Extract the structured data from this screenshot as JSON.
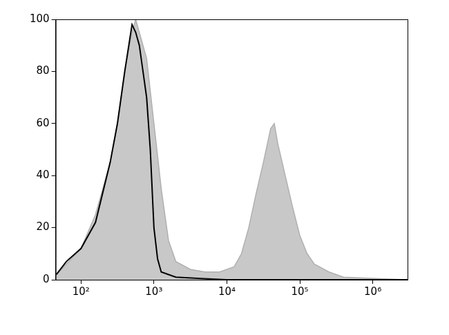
{
  "chart_data": {
    "type": "line",
    "log": "x",
    "grid": false,
    "xlim": [
      45,
      3000000
    ],
    "xticks": [
      {
        "value": 100,
        "label": "10²"
      },
      {
        "value": 1000,
        "label": "10³"
      },
      {
        "value": 10000,
        "label": "10⁴"
      },
      {
        "value": 100000,
        "label": "10⁵"
      },
      {
        "value": 1000000,
        "label": "10⁶"
      }
    ],
    "ylim": [
      0,
      100
    ],
    "yticks": [
      0,
      20,
      40,
      60,
      80,
      100
    ],
    "series": [
      {
        "color": "#c8c8c8",
        "type": "area",
        "x": [
          46,
          63,
          100,
          158,
          251,
          316,
          398,
          501,
          562,
          631,
          794,
          1000,
          1259,
          1585,
          1995,
          3162,
          5012,
          7943,
          12589,
          15849,
          19953,
          25119,
          31623,
          39811,
          44668,
          50119,
          63096,
          79433,
          100000,
          125893,
          158489,
          251189,
          398107,
          1000000,
          3000000
        ],
        "values": [
          2,
          6,
          12,
          25,
          45,
          60,
          80,
          95,
          100,
          95,
          85,
          60,
          35,
          15,
          7,
          4,
          3,
          3,
          5,
          10,
          20,
          33,
          45,
          58,
          60,
          52,
          40,
          28,
          17,
          10,
          6,
          3,
          1,
          0.5,
          0
        ]
      },
      {
        "color": "#000000",
        "type": "line",
        "x": [
          46,
          63,
          100,
          158,
          251,
          316,
          398,
          501,
          562,
          631,
          794,
          891,
          1000,
          1122,
          1259,
          1995,
          3981,
          10000,
          3000000
        ],
        "values": [
          2,
          7,
          12,
          22,
          45,
          60,
          80,
          98,
          95,
          90,
          70,
          50,
          20,
          8,
          3,
          1,
          0.5,
          0,
          0
        ]
      }
    ]
  }
}
